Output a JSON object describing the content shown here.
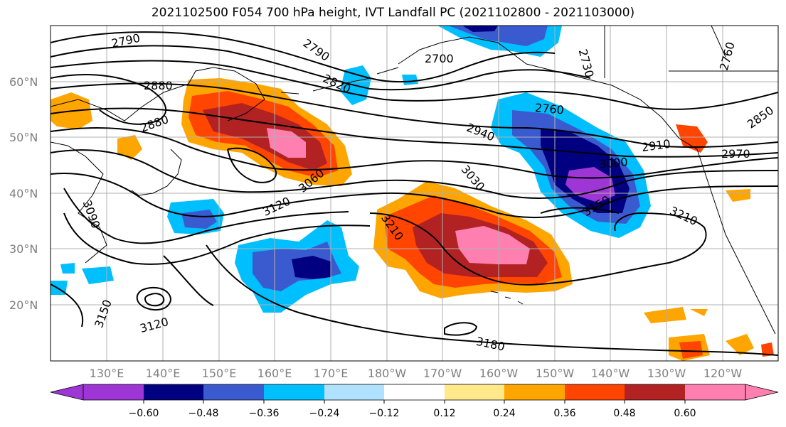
{
  "title": "2021102500 F054 700 hPa height, IVT Landfall PC (2021102800 - 2021103000)",
  "map": {
    "lat_labels": [
      "60°N",
      "50°N",
      "40°N",
      "30°N",
      "20°N"
    ],
    "lon_labels": [
      "130°E",
      "140°E",
      "150°E",
      "160°E",
      "170°E",
      "180°W",
      "170°W",
      "160°W",
      "150°W",
      "140°W",
      "130°W",
      "120°W"
    ],
    "contour_labels": [
      "2790",
      "2790",
      "2820",
      "2700",
      "2730",
      "2760",
      "2880",
      "2880",
      "2760",
      "2850",
      "2940",
      "2910",
      "2970",
      "3000",
      "3060",
      "3030",
      "3120",
      "3150",
      "3090",
      "3210",
      "3210",
      "3150",
      "3120",
      "3180"
    ]
  },
  "colorbar": {
    "tick_labels": [
      "−0.60",
      "−0.48",
      "−0.36",
      "−0.24",
      "−0.12",
      "0.12",
      "0.24",
      "0.36",
      "0.48",
      "0.60"
    ],
    "colors": [
      "#9d36d4",
      "#000080",
      "#3a5bd0",
      "#00bfff",
      "#b0e2ff",
      "#ffffff",
      "#ffe98a",
      "#ffa500",
      "#ff4500",
      "#b22222",
      "#ff80b0",
      "#ff80b0"
    ]
  },
  "colors": {
    "neg_strong": "#000080",
    "neg_purple": "#9d36d4",
    "neg_mid": "#3a5bd0",
    "neg_light": "#00bfff",
    "pos_light": "#ffa500",
    "pos_mid": "#ff4500",
    "pos_strong": "#b22222",
    "pos_pink": "#ff80b0"
  }
}
